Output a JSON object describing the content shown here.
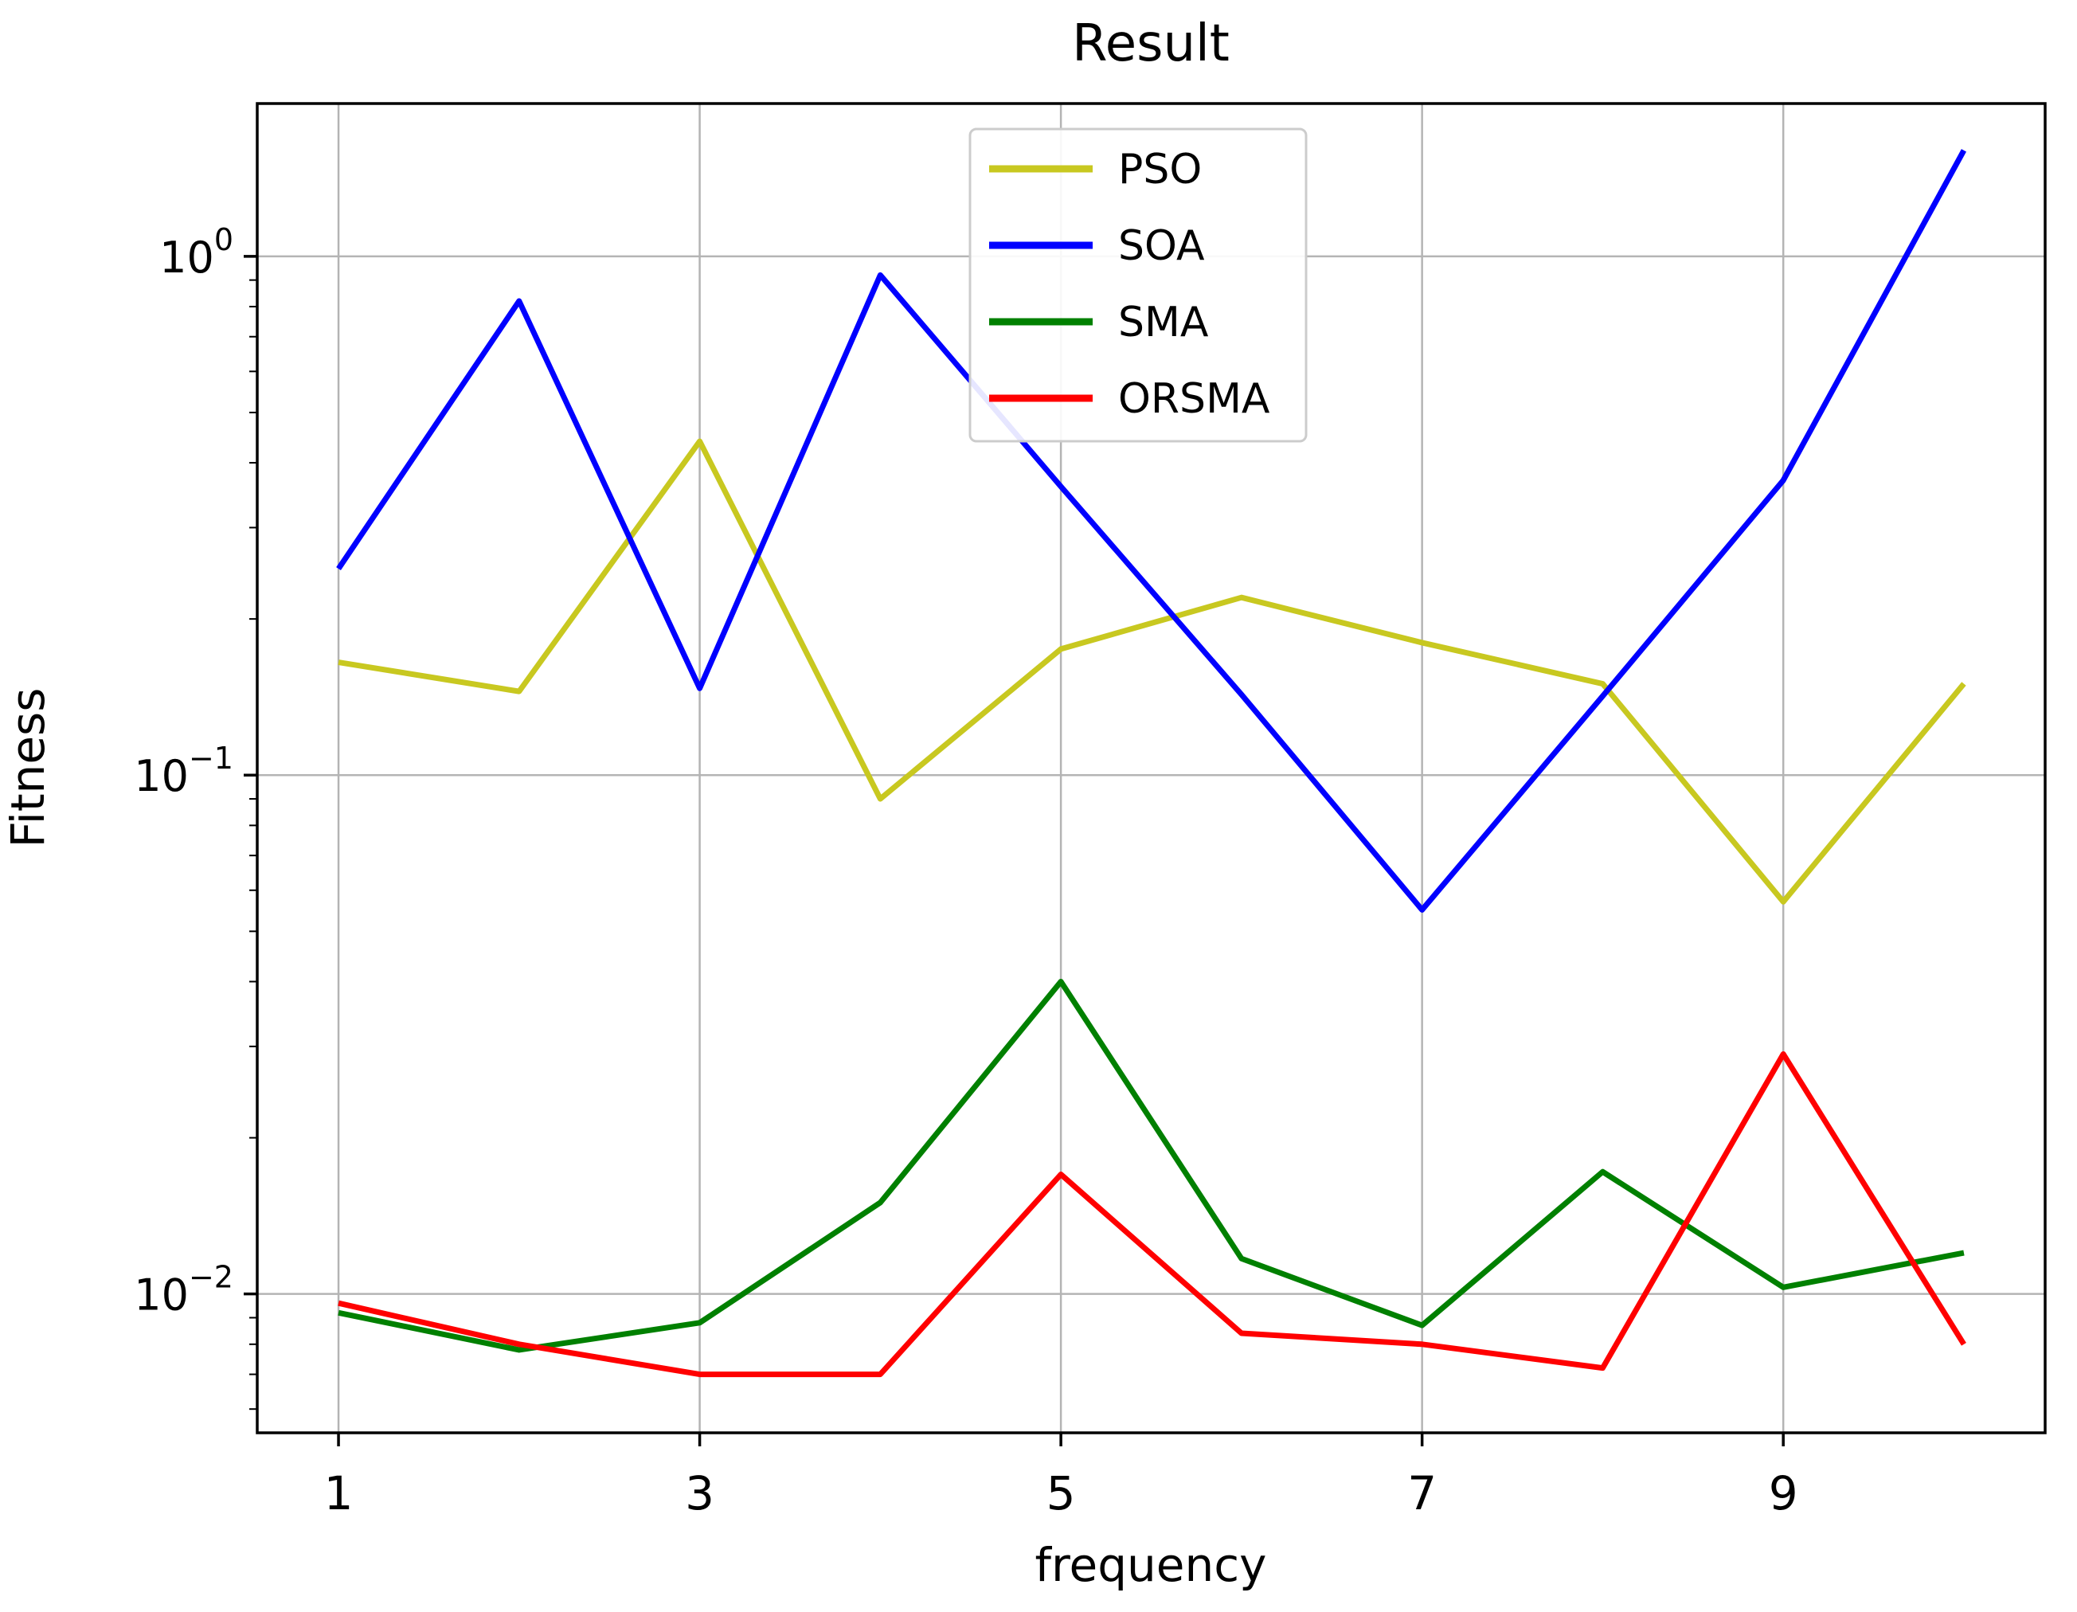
{
  "chart_data": {
    "type": "line",
    "title": "Result",
    "xlabel": "frequency",
    "ylabel": "Fitness",
    "yscale": "log",
    "grid": true,
    "x": [
      1,
      2,
      3,
      4,
      5,
      6,
      7,
      8,
      9,
      10
    ],
    "series": [
      {
        "name": "PSO",
        "color": "#c8c820",
        "values": [
          0.165,
          0.145,
          0.44,
          0.09,
          0.175,
          0.22,
          0.18,
          0.15,
          0.057,
          0.15
        ]
      },
      {
        "name": "SOA",
        "color": "#0000ff",
        "values": [
          0.25,
          0.82,
          0.147,
          0.92,
          0.36,
          0.143,
          0.055,
          0.142,
          0.37,
          1.6
        ]
      },
      {
        "name": "SMA",
        "color": "#008000",
        "values": [
          0.0092,
          0.0078,
          0.0088,
          0.015,
          0.04,
          0.0117,
          0.0087,
          0.0172,
          0.0103,
          0.012
        ]
      },
      {
        "name": "ORSMA",
        "color": "#ff0000",
        "values": [
          0.0096,
          0.008,
          0.007,
          0.007,
          0.017,
          0.0084,
          0.008,
          0.0072,
          0.029,
          0.008
        ]
      }
    ],
    "xlim": [
      0.55,
      10.45
    ],
    "ylim": [
      0.0054,
      1.97
    ],
    "x_ticks": [
      1,
      3,
      5,
      7,
      9
    ],
    "y_ticks": [
      {
        "value": 1,
        "exponent": "0"
      },
      {
        "value": 0.1,
        "exponent": "−1"
      },
      {
        "value": 0.01,
        "exponent": "−2"
      }
    ],
    "legend": {
      "position": "upper center",
      "entries": [
        "PSO",
        "SOA",
        "SMA",
        "ORSMA"
      ]
    }
  },
  "style": {
    "grid_color": "#b4b4b4",
    "spine_color": "#000000",
    "legend_border_color": "#cccccc",
    "background": "#ffffff"
  }
}
